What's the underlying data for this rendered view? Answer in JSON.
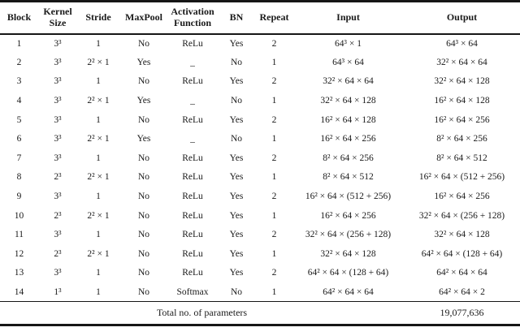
{
  "table": {
    "headers": [
      "Block",
      "Kernel Size",
      "Stride",
      "MaxPool",
      "Activation Function",
      "BN",
      "Repeat",
      "Input",
      "Output"
    ],
    "rows": [
      [
        "1",
        "3³",
        "1",
        "No",
        "ReLu",
        "Yes",
        "2",
        "64³ × 1",
        "64³ × 64"
      ],
      [
        "2",
        "3³",
        "2² × 1",
        "Yes",
        "_",
        "No",
        "1",
        "64³ × 64",
        "32² × 64 × 64"
      ],
      [
        "3",
        "3³",
        "1",
        "No",
        "ReLu",
        "Yes",
        "2",
        "32² × 64 × 64",
        "32² × 64 × 128"
      ],
      [
        "4",
        "3³",
        "2² × 1",
        "Yes",
        "_",
        "No",
        "1",
        "32² × 64 × 128",
        "16² × 64 × 128"
      ],
      [
        "5",
        "3³",
        "1",
        "No",
        "ReLu",
        "Yes",
        "2",
        "16² × 64 × 128",
        "16² × 64 × 256"
      ],
      [
        "6",
        "3³",
        "2² × 1",
        "Yes",
        "_",
        "No",
        "1",
        "16² × 64 × 256",
        "8² × 64 × 256"
      ],
      [
        "7",
        "3³",
        "1",
        "No",
        "ReLu",
        "Yes",
        "2",
        "8² × 64 × 256",
        "8² × 64 × 512"
      ],
      [
        "8",
        "2³",
        "2² × 1",
        "No",
        "ReLu",
        "Yes",
        "1",
        "8² × 64 × 512",
        "16² × 64 × (512 + 256)"
      ],
      [
        "9",
        "3³",
        "1",
        "No",
        "ReLu",
        "Yes",
        "2",
        "16² × 64 × (512 + 256)",
        "16² × 64 × 256"
      ],
      [
        "10",
        "2³",
        "2² × 1",
        "No",
        "ReLu",
        "Yes",
        "1",
        "16² × 64 × 256",
        "32² × 64 × (256 + 128)"
      ],
      [
        "11",
        "3³",
        "1",
        "No",
        "ReLu",
        "Yes",
        "2",
        "32² × 64 × (256 + 128)",
        "32² × 64 × 128"
      ],
      [
        "12",
        "2³",
        "2² × 1",
        "No",
        "ReLu",
        "Yes",
        "1",
        "32² × 64 × 128",
        "64² × 64 × (128 + 64)"
      ],
      [
        "13",
        "3³",
        "1",
        "No",
        "ReLu",
        "Yes",
        "2",
        "64² × 64 × (128 + 64)",
        "64² × 64 × 64"
      ],
      [
        "14",
        "1³",
        "1",
        "No",
        "Softmax",
        "No",
        "1",
        "64² × 64 × 64",
        "64² × 64 × 2"
      ]
    ],
    "column_keys": [
      "block",
      "kernel-size",
      "stride",
      "maxpool",
      "activation-function",
      "bn",
      "repeat",
      "input",
      "output"
    ],
    "footer": {
      "label": "Total no. of parameters",
      "value": "19,077,636"
    },
    "colors": {
      "text": "#1a1a1a",
      "rule": "#161616",
      "background": "#ffffff"
    }
  }
}
